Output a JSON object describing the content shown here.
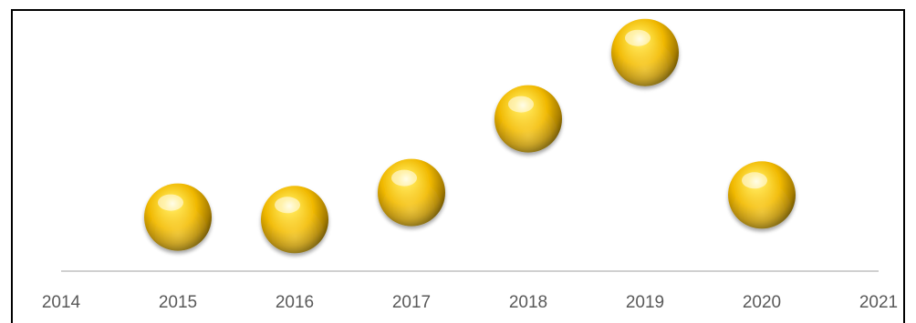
{
  "chart_data": {
    "type": "scatter",
    "title": "",
    "xlabel": "",
    "ylabel": "",
    "x_ticks": [
      "2014",
      "2015",
      "2016",
      "2017",
      "2018",
      "2019",
      "2020",
      "2021"
    ],
    "xlim": [
      2014,
      2021
    ],
    "ylim": [
      0,
      10
    ],
    "grid": false,
    "legend": "none",
    "series": [
      {
        "color": "#f2c200",
        "points": [
          {
            "x": 2015,
            "y": 2.2
          },
          {
            "x": 2016,
            "y": 2.1
          },
          {
            "x": 2017,
            "y": 3.2
          },
          {
            "x": 2018,
            "y": 6.2
          },
          {
            "x": 2019,
            "y": 8.9
          },
          {
            "x": 2020,
            "y": 3.1
          }
        ]
      }
    ]
  },
  "colors": {
    "axis": "#d0d0d0",
    "tick_label": "#595959",
    "bubble_light": "#fff6a8",
    "bubble_mid": "#f2c200",
    "bubble_dark": "#6b5200"
  }
}
